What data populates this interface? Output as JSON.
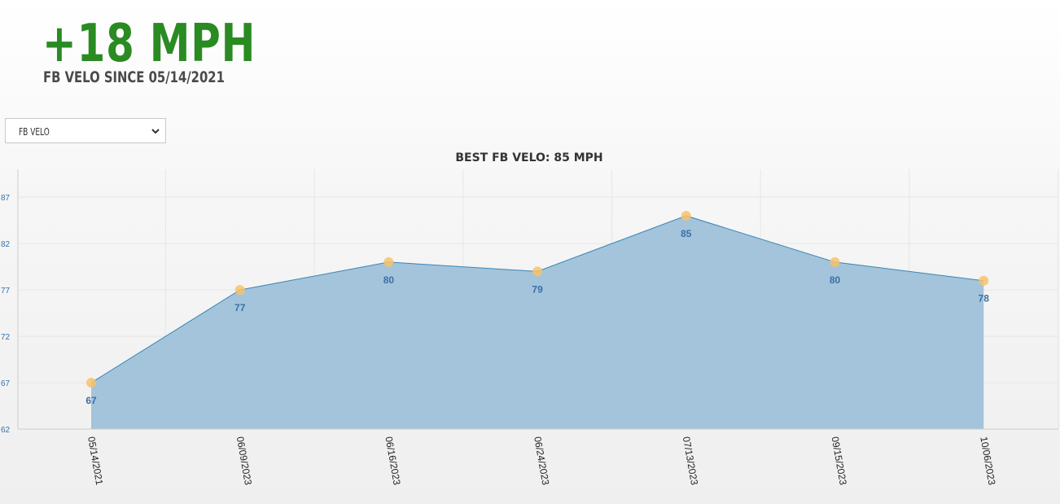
{
  "header": {
    "value": "+18 MPH",
    "subtitle": "FB VELO SINCE 05/14/2021"
  },
  "metric_select": {
    "selected": "FB VELO",
    "chevron_icon": "chevron-down-icon"
  },
  "colors": {
    "accent_green": "#2a8b22",
    "area_fill": "#a3c4da",
    "line": "#3a86b8",
    "point": "#f6c36a",
    "label_blue": "#3a6fa8"
  },
  "chart_data": {
    "type": "area",
    "title": "BEST FB VELO: 85 MPH",
    "x": [
      "05/14/2021",
      "06/09/2023",
      "06/16/2023",
      "06/24/2023",
      "07/13/2023",
      "09/15/2023",
      "10/06/2023"
    ],
    "series": [
      {
        "values": [
          67,
          77,
          80,
          79,
          85,
          80,
          78
        ]
      }
    ],
    "y_ticks": [
      "62",
      "67",
      "72",
      "77",
      "82",
      "87"
    ],
    "ylim": [
      62,
      90
    ],
    "data_labels": true,
    "grid": true,
    "legend": "none"
  }
}
